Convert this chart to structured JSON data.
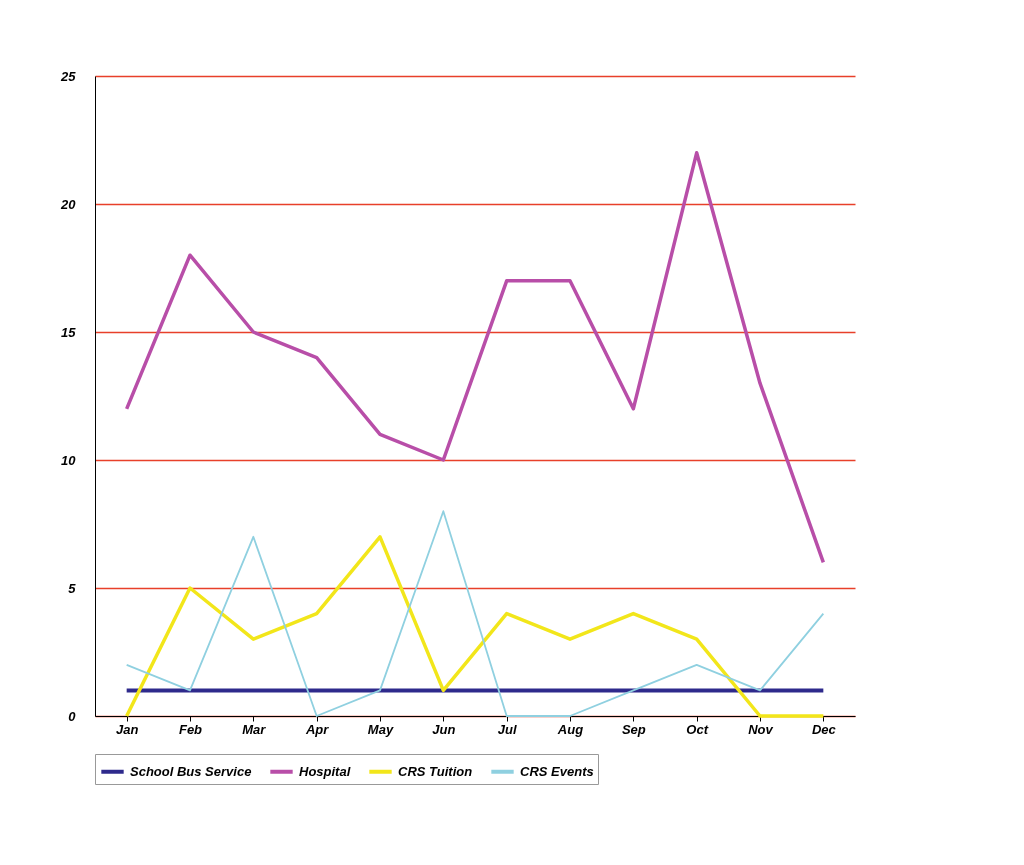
{
  "chart_data": {
    "type": "line",
    "categories": [
      "Jan",
      "Feb",
      "Mar",
      "Apr",
      "May",
      "Jun",
      "Jul",
      "Aug",
      "Sep",
      "Oct",
      "Nov",
      "Dec"
    ],
    "series": [
      {
        "name": "School Bus Service",
        "color": "#2e2a8c",
        "values": [
          1,
          1,
          1,
          1,
          1,
          1,
          1,
          1,
          1,
          1,
          1,
          1
        ]
      },
      {
        "name": "Hospital",
        "color": "#b84ea8",
        "values": [
          12,
          18,
          15,
          14,
          11,
          10,
          17,
          17,
          12,
          22,
          13,
          6
        ]
      },
      {
        "name": "CRS Tuition",
        "color": "#f2e61a",
        "values": [
          0,
          5,
          3,
          4,
          7,
          1,
          4,
          3,
          4,
          3,
          0,
          0
        ]
      },
      {
        "name": "CRS Events",
        "color": "#8fd0e0",
        "values": [
          2,
          1,
          7,
          0,
          1,
          8,
          0,
          0,
          1,
          2,
          1,
          4
        ]
      }
    ],
    "ylim": [
      0,
      25
    ],
    "yticks": [
      0,
      5,
      10,
      15,
      20,
      25
    ],
    "grid": "y",
    "legend": "bottom",
    "marker": "none",
    "line_style": "solid"
  }
}
